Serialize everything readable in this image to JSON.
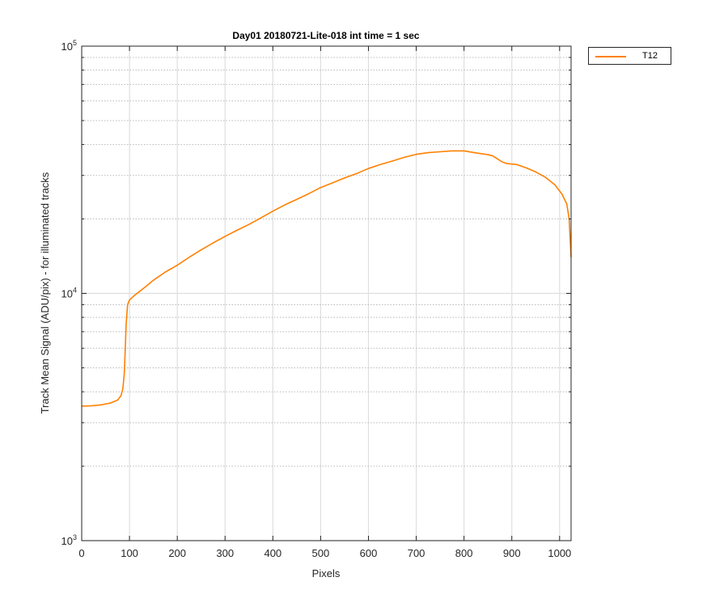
{
  "chart_data": {
    "type": "line",
    "title": "Day01 20180721-Lite-018 int time = 1 sec",
    "xlabel": "Pixels",
    "ylabel": "Track Mean Signal (ADU/pix) - for illuminated tracks",
    "xlim": [
      0,
      1024
    ],
    "ylim": [
      1000,
      100000
    ],
    "yscale": "log",
    "grid": true,
    "legend_position": "outside-top-right",
    "x_ticks": [
      "0",
      "100",
      "200",
      "300",
      "400",
      "500",
      "600",
      "700",
      "800",
      "900",
      "1000"
    ],
    "y_ticks": [
      {
        "base": "10",
        "exp": "3",
        "value": 1000
      },
      {
        "base": "10",
        "exp": "4",
        "value": 10000
      },
      {
        "base": "10",
        "exp": "5",
        "value": 100000
      }
    ],
    "series": [
      {
        "name": "T12",
        "color": "#ff8000",
        "points": [
          [
            0,
            3500
          ],
          [
            20,
            3510
          ],
          [
            40,
            3540
          ],
          [
            60,
            3600
          ],
          [
            75,
            3700
          ],
          [
            82,
            3850
          ],
          [
            86,
            4100
          ],
          [
            89,
            4700
          ],
          [
            91,
            5800
          ],
          [
            93,
            7500
          ],
          [
            96,
            9000
          ],
          [
            100,
            9400
          ],
          [
            110,
            9800
          ],
          [
            130,
            10500
          ],
          [
            150,
            11300
          ],
          [
            175,
            12200
          ],
          [
            200,
            13000
          ],
          [
            225,
            14000
          ],
          [
            250,
            15000
          ],
          [
            275,
            16000
          ],
          [
            300,
            17000
          ],
          [
            325,
            18000
          ],
          [
            350,
            19000
          ],
          [
            375,
            20200
          ],
          [
            400,
            21500
          ],
          [
            425,
            22800
          ],
          [
            450,
            24000
          ],
          [
            475,
            25300
          ],
          [
            500,
            26800
          ],
          [
            525,
            28000
          ],
          [
            550,
            29300
          ],
          [
            575,
            30500
          ],
          [
            600,
            32000
          ],
          [
            625,
            33200
          ],
          [
            650,
            34300
          ],
          [
            675,
            35500
          ],
          [
            700,
            36500
          ],
          [
            725,
            37100
          ],
          [
            750,
            37400
          ],
          [
            775,
            37700
          ],
          [
            800,
            37700
          ],
          [
            825,
            37000
          ],
          [
            850,
            36400
          ],
          [
            860,
            36000
          ],
          [
            870,
            35000
          ],
          [
            880,
            34000
          ],
          [
            890,
            33500
          ],
          [
            910,
            33200
          ],
          [
            930,
            32200
          ],
          [
            950,
            31000
          ],
          [
            970,
            29500
          ],
          [
            990,
            27500
          ],
          [
            1005,
            25200
          ],
          [
            1015,
            23000
          ],
          [
            1020,
            20000
          ],
          [
            1024,
            14000
          ]
        ]
      }
    ]
  }
}
